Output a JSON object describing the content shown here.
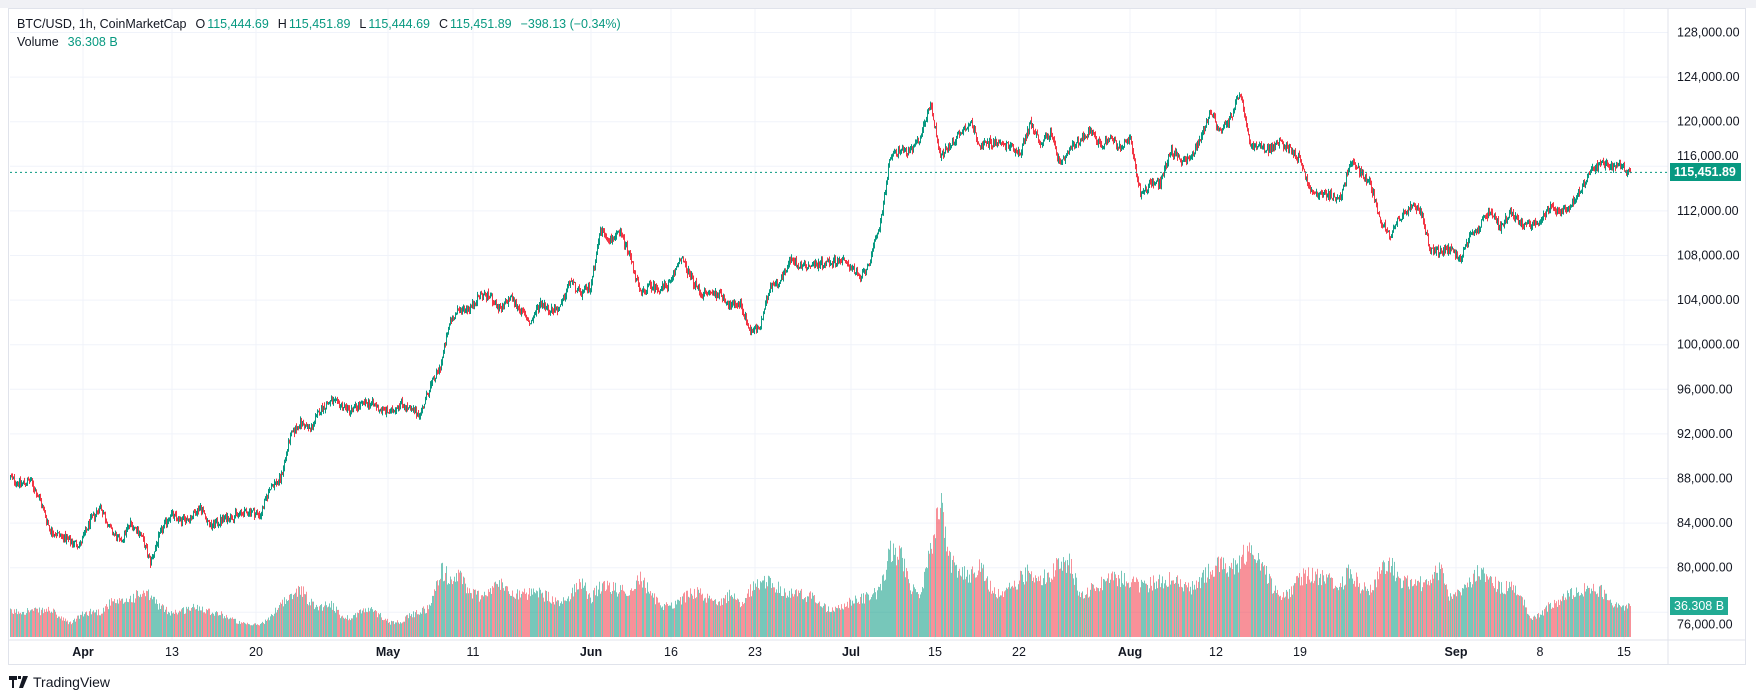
{
  "header": {
    "symbol": "BTC/USD, 1h, CoinMarketCap",
    "open_label": "O",
    "open": "115,444.69",
    "high_label": "H",
    "high": "115,451.89",
    "low_label": "L",
    "low": "115,444.69",
    "close_label": "C",
    "close": "115,451.89",
    "change": "−398.13 (−0.34%)",
    "volume_label": "Volume",
    "volume": "36.308 B"
  },
  "price_badge": "115,451.89",
  "volume_badge": "36.308 B",
  "brand": "TradingView",
  "colors": {
    "up": "#089981",
    "down": "#f23645",
    "grid": "#f0f3fa",
    "text": "#131722",
    "last_price": "#089981",
    "volume_badge": "#22ab94"
  },
  "chart_data": {
    "type": "candlestick",
    "title": "BTC/USD, 1h, CoinMarketCap",
    "interval": "1h",
    "sample_every_bars": 20,
    "ylim": [
      74000,
      130000
    ],
    "grid": true,
    "y_ticks": [
      "128,000.00",
      "124,000.00",
      "120,000.00",
      "116,000.00",
      "112,000.00",
      "108,000.00",
      "104,000.00",
      "100,000.00",
      "96,000.00",
      "92,000.00",
      "88,000.00",
      "84,000.00",
      "80,000.00",
      "76,000.00"
    ],
    "y_tick_values": [
      128000,
      124000,
      120000,
      116000,
      112000,
      108000,
      104000,
      100000,
      96000,
      92000,
      88000,
      84000,
      80000,
      76000
    ],
    "x_ticks": [
      {
        "label": "Apr",
        "month": true
      },
      {
        "label": "13"
      },
      {
        "label": "20"
      },
      {
        "label": "May",
        "month": true
      },
      {
        "label": "11"
      },
      {
        "label": "Jun",
        "month": true
      },
      {
        "label": "16"
      },
      {
        "label": "23"
      },
      {
        "label": "Jul",
        "month": true
      },
      {
        "label": "15"
      },
      {
        "label": "22"
      },
      {
        "label": "Aug",
        "month": true
      },
      {
        "label": "12"
      },
      {
        "label": "19"
      },
      {
        "label": "Sep",
        "month": true
      },
      {
        "label": "8"
      },
      {
        "label": "15"
      }
    ],
    "last_price": 115451.89,
    "close_sampled": [
      88100,
      87500,
      87800,
      86000,
      83300,
      82900,
      82300,
      82100,
      84200,
      85500,
      83400,
      82300,
      84000,
      83100,
      80500,
      83100,
      84800,
      84200,
      84500,
      85500,
      83700,
      84200,
      84600,
      84800,
      85100,
      84700,
      87300,
      87900,
      91800,
      93000,
      92400,
      94200,
      94900,
      94600,
      94100,
      94600,
      94800,
      94200,
      93900,
      94800,
      94100,
      93800,
      96300,
      98000,
      102200,
      103200,
      103300,
      104500,
      104300,
      103000,
      104300,
      103100,
      101900,
      103800,
      103100,
      103300,
      105800,
      104500,
      105200,
      110300,
      109400,
      110000,
      107900,
      104500,
      105300,
      105000,
      105500,
      107900,
      106100,
      104600,
      104600,
      104600,
      103400,
      103700,
      101200,
      101600,
      105300,
      105800,
      107600,
      107100,
      107100,
      107300,
      107400,
      107600,
      107100,
      105900,
      107600,
      111000,
      116900,
      117500,
      117300,
      118600,
      121700,
      116900,
      117900,
      119000,
      120000,
      117800,
      118200,
      118000,
      117800,
      117200,
      119900,
      118100,
      119000,
      116000,
      117500,
      118400,
      119300,
      117800,
      118600,
      117600,
      118400,
      113500,
      114500,
      114500,
      117500,
      116600,
      116600,
      118500,
      121000,
      119000,
      120300,
      122600,
      117800,
      117700,
      117500,
      118200,
      117500,
      116600,
      113700,
      113500,
      113400,
      113000,
      116500,
      115500,
      114500,
      111100,
      109900,
      111500,
      112300,
      112100,
      108500,
      108300,
      108500,
      107800,
      109600,
      110700,
      112100,
      110500,
      112000,
      110800,
      110800,
      111100,
      112300,
      112000,
      112400,
      113900,
      115500,
      116300,
      115900,
      116000,
      115451.89
    ],
    "volume_unit": "B",
    "volume_sampled": [
      29,
      30,
      31,
      30,
      32,
      22,
      16,
      25,
      30,
      29,
      40,
      40,
      45,
      50,
      48,
      35,
      29,
      30,
      34,
      35,
      30,
      27,
      22,
      16,
      14,
      15,
      22,
      40,
      45,
      58,
      40,
      35,
      40,
      25,
      22,
      30,
      32,
      25,
      17,
      18,
      25,
      30,
      35,
      79,
      68,
      70,
      52,
      48,
      55,
      62,
      55,
      49,
      50,
      51,
      45,
      37,
      50,
      67,
      45,
      58,
      57,
      55,
      54,
      70,
      50,
      37,
      37,
      42,
      53,
      50,
      42,
      43,
      49,
      40,
      55,
      62,
      66,
      54,
      50,
      50,
      47,
      40,
      30,
      34,
      41,
      44,
      47,
      55,
      100,
      95,
      60,
      45,
      100,
      155,
      90,
      74,
      72,
      80,
      60,
      47,
      57,
      68,
      78,
      68,
      72,
      90,
      85,
      49,
      55,
      63,
      68,
      68,
      67,
      59,
      62,
      65,
      68,
      62,
      55,
      65,
      78,
      84,
      76,
      90,
      107,
      88,
      62,
      50,
      50,
      70,
      73,
      70,
      66,
      60,
      78,
      58,
      56,
      75,
      85,
      66,
      63,
      62,
      70,
      78,
      45,
      52,
      65,
      77,
      70,
      56,
      59,
      52,
      23,
      25,
      38,
      42,
      50,
      56,
      55,
      55,
      42,
      34,
      36.308
    ]
  }
}
